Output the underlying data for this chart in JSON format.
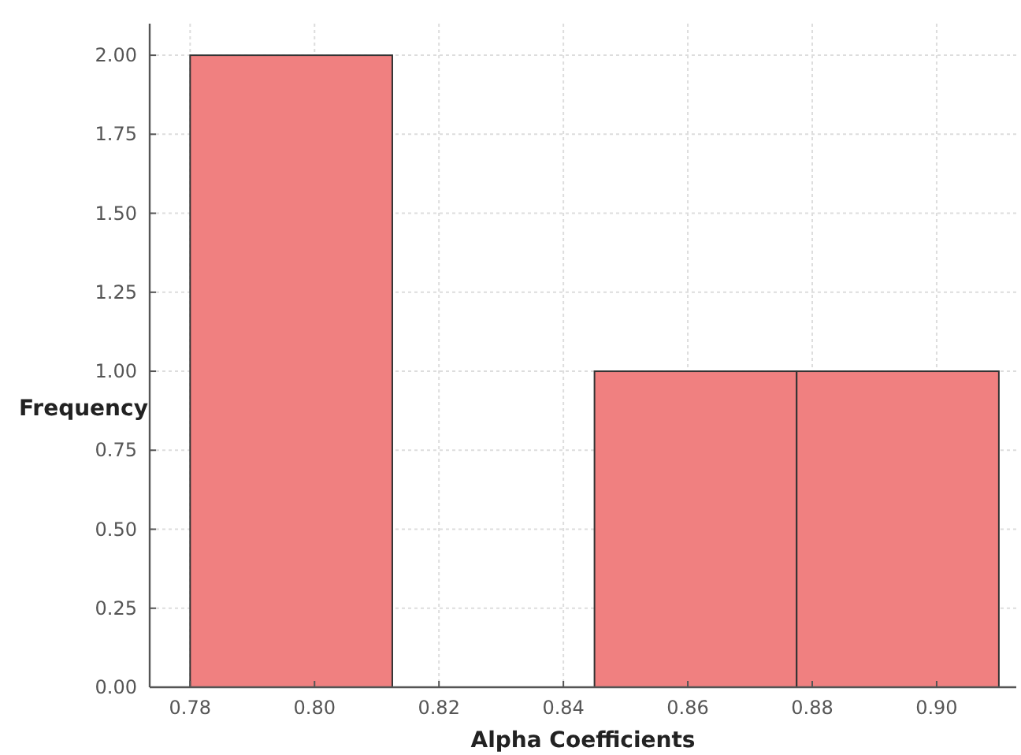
{
  "chart_data": {
    "type": "histogram",
    "xlabel": "Alpha Coefficients",
    "ylabel": "Frequency",
    "bins": [
      0.78,
      0.8125,
      0.845,
      0.8775,
      0.91
    ],
    "values": [
      2,
      0,
      1,
      1
    ],
    "color": "#f08080",
    "xlim": [
      0.7735,
      0.9128
    ],
    "xticks": [
      0.78,
      {
        "value": 0.8,
        "label": "0.80"
      },
      0.82,
      0.84,
      0.86,
      0.88,
      {
        "value": 0.9,
        "label": "0.90"
      }
    ],
    "ylim": [
      0,
      2.1
    ],
    "yticks": [
      {
        "value": 0,
        "label": "0.00"
      },
      {
        "value": 0.25,
        "label": "0.25"
      },
      {
        "value": 0.5,
        "label": "0.50"
      },
      {
        "value": 0.75,
        "label": "0.75"
      },
      {
        "value": 1,
        "label": "1.00"
      },
      {
        "value": 1.25,
        "label": "1.25"
      },
      {
        "value": 1.5,
        "label": "1.50"
      },
      {
        "value": 1.75,
        "label": "1.75"
      },
      {
        "value": 2,
        "label": "2.00"
      }
    ],
    "grid": true
  }
}
